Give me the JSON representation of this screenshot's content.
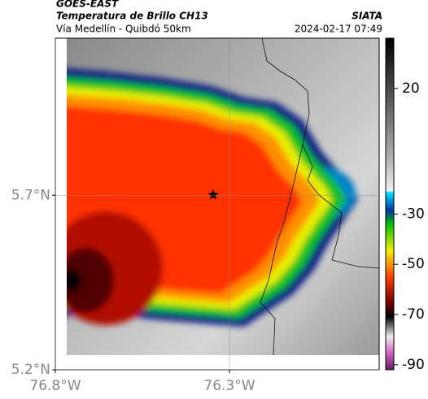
{
  "header": {
    "title": "GOES-EAST",
    "subtitle": "Temperatura de Brillo CH13",
    "location": "Vía Medellín - Quibdó 50km",
    "source": "SIATA",
    "datetime": "2024-02-17 07:49"
  },
  "map": {
    "xlim": [
      -76.8,
      -75.87
    ],
    "ylim": [
      5.2,
      6.15
    ],
    "xticks": [
      {
        "value": -76.8,
        "label": "76.8°W"
      },
      {
        "value": -76.3,
        "label": "76.3°W"
      }
    ],
    "yticks": [
      {
        "value": 5.2,
        "label": "5.2°N"
      },
      {
        "value": 5.7,
        "label": "5.7°N"
      }
    ],
    "grid": true
  },
  "colorbar": {
    "lim": [
      -92,
      40
    ],
    "ticks": [
      20,
      -30,
      -50,
      -70,
      -90
    ]
  }
}
